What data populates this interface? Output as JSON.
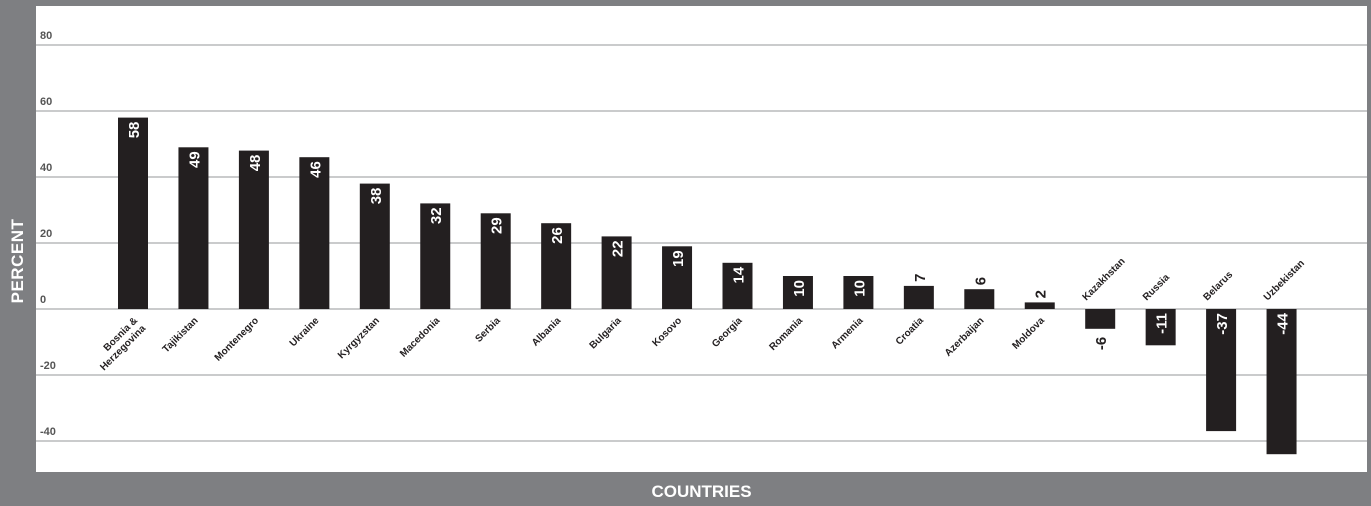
{
  "chart_data": {
    "type": "bar",
    "xlabel": "COUNTRIES",
    "ylabel": "PERCENT",
    "ylim": [
      -50,
      85
    ],
    "yticks": [
      "80",
      "60",
      "40",
      "20",
      "0",
      "-20",
      "-40"
    ],
    "ytick_values": [
      80,
      60,
      40,
      20,
      0,
      -20,
      -40
    ],
    "grid": true,
    "categories": [
      "Bosnia & Herzegovina",
      "Tajikistan",
      "Montenegro",
      "Ukraine",
      "Kyrgyzstan",
      "Macedonia",
      "Serbia",
      "Albania",
      "Bulgaria",
      "Kosovo",
      "Georgia",
      "Romania",
      "Armenia",
      "Croatia",
      "Azerbaijan",
      "Moldova",
      "Kazakhstan",
      "Russia",
      "Belarus",
      "Uzbekistan"
    ],
    "values": [
      58,
      49,
      48,
      46,
      38,
      32,
      29,
      26,
      22,
      19,
      14,
      10,
      10,
      7,
      6,
      2,
      -6,
      -11,
      -37,
      -44
    ],
    "value_labels": [
      "58",
      "49",
      "48",
      "46",
      "38",
      "32",
      "29",
      "26",
      "22",
      "19",
      "14",
      "10",
      "10",
      "7",
      "6",
      "2",
      "-6",
      "-11",
      "-37",
      "-44"
    ],
    "colors": {
      "bar": "#231f20",
      "frame": "#7e7f82",
      "grid": "#b9babc",
      "tick_text": "#555555",
      "label_inside": "#ffffff",
      "label_outside": "#231f20"
    }
  }
}
